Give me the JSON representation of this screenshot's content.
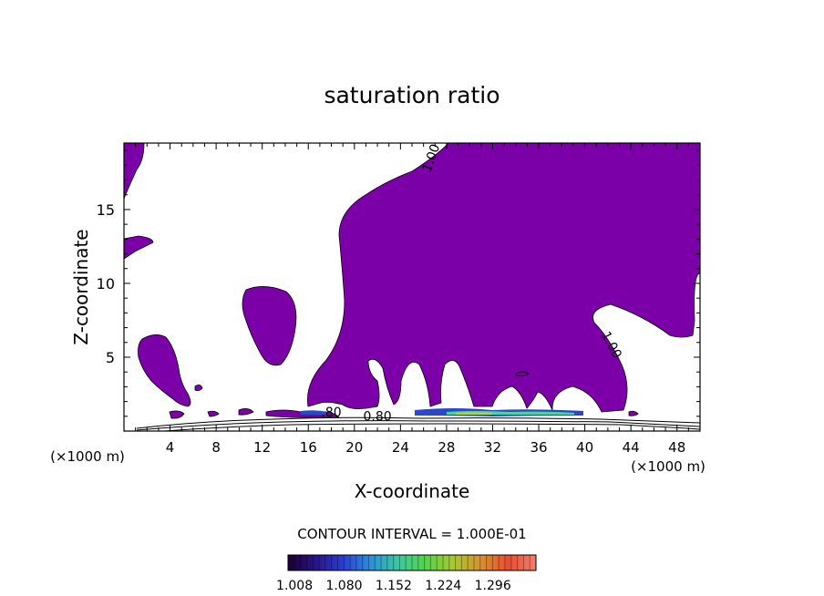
{
  "chart_data": {
    "type": "contour",
    "title": "saturation ratio",
    "xlabel": "X-coordinate",
    "ylabel": "Z-coordinate",
    "x_unit": "(×1000 m)",
    "y_unit": "(×1000 m)",
    "xlim": [
      0,
      50
    ],
    "ylim": [
      0,
      19.5
    ],
    "x_ticks": [
      4,
      8,
      12,
      16,
      20,
      24,
      28,
      32,
      36,
      40,
      44,
      48
    ],
    "y_ticks": [
      5,
      10,
      15
    ],
    "contour_labels": [
      {
        "text": "1.00",
        "x": 27.0,
        "z": 18.4
      },
      {
        "text": "1.00",
        "x": 42.0,
        "z": 5.7
      },
      {
        "text": ".80",
        "x": 18.0,
        "z": 1.0
      },
      {
        "text": "0.80",
        "x": 22.0,
        "z": 0.7
      }
    ],
    "contour_interval_text": "CONTOUR INTERVAL = 1.000E-01",
    "colorbar": {
      "tick_labels": [
        "1.008",
        "1.080",
        "1.152",
        "1.224",
        "1.296"
      ],
      "colors": [
        "#1a0033",
        "#2a1488",
        "#2a3fd0",
        "#2e8fd8",
        "#3cc8a0",
        "#56d24a",
        "#a8c832",
        "#d89030",
        "#e84e30",
        "#f08070"
      ]
    },
    "fill_color": "#7c00a8"
  }
}
